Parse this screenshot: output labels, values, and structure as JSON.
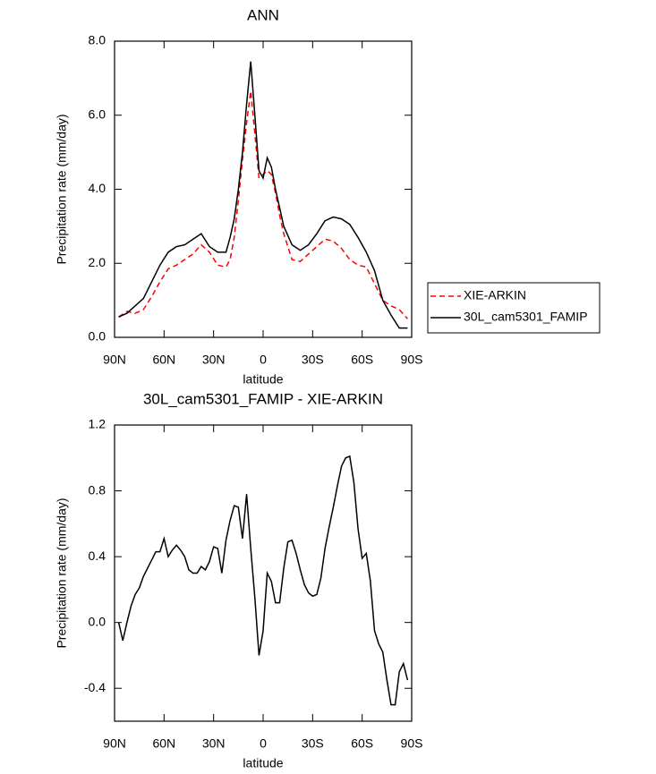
{
  "chart_data": [
    {
      "type": "line",
      "title": "ANN",
      "xlabel": "latitude",
      "ylabel": "Precipitation rate (mm/day)",
      "x": [
        87.5,
        82.5,
        77.5,
        72.5,
        67.5,
        62.5,
        57.5,
        52.5,
        47.5,
        42.5,
        37.5,
        32.5,
        27.5,
        22.5,
        20,
        17.5,
        15,
        12.5,
        10,
        7.5,
        5,
        2.5,
        0,
        -2.5,
        -5,
        -7.5,
        -10,
        -12.5,
        -17.5,
        -22.5,
        -27.5,
        -32.5,
        -37.5,
        -42.5,
        -47.5,
        -52.5,
        -57.5,
        -62.5,
        -67.5,
        -72.5,
        -77.5,
        -82.5,
        -87.5
      ],
      "series": [
        {
          "name": "XIE-ARKIN",
          "color": "#ff0000",
          "line_style": "dashed",
          "values": [
            0.55,
            0.7,
            0.65,
            0.75,
            1.1,
            1.5,
            1.85,
            1.95,
            2.1,
            2.25,
            2.5,
            2.3,
            1.95,
            1.9,
            2.1,
            2.7,
            3.7,
            4.8,
            5.8,
            6.65,
            5.5,
            4.3,
            4.4,
            4.5,
            4.4,
            3.9,
            3.3,
            2.8,
            2.1,
            2.05,
            2.25,
            2.45,
            2.65,
            2.6,
            2.4,
            2.1,
            1.95,
            1.9,
            1.45,
            1.0,
            0.85,
            0.75,
            0.5
          ]
        },
        {
          "name": "30L_cam5301_FAMIP",
          "color": "#000000",
          "line_style": "solid",
          "values": [
            0.55,
            0.65,
            0.85,
            1.05,
            1.5,
            1.95,
            2.3,
            2.45,
            2.5,
            2.65,
            2.8,
            2.45,
            2.3,
            2.3,
            2.7,
            3.2,
            4.0,
            5.0,
            6.3,
            7.45,
            6.0,
            4.5,
            4.3,
            4.85,
            4.6,
            4.0,
            3.5,
            3.0,
            2.5,
            2.35,
            2.5,
            2.8,
            3.15,
            3.25,
            3.2,
            3.05,
            2.7,
            2.3,
            1.8,
            1.0,
            0.6,
            0.25,
            0.25
          ]
        }
      ],
      "xlim": [
        90,
        -90
      ],
      "xticks": [
        {
          "value": 90,
          "label": "90N"
        },
        {
          "value": 60,
          "label": "60N"
        },
        {
          "value": 30,
          "label": "30N"
        },
        0,
        {
          "value": -30,
          "label": "30S"
        },
        {
          "value": -60,
          "label": "60S"
        },
        {
          "value": -90,
          "label": "90S"
        }
      ],
      "ylim": [
        0,
        8
      ],
      "yticks": [
        {
          "value": 0,
          "label": "0.0"
        },
        {
          "value": 2,
          "label": "2.0"
        },
        {
          "value": 4,
          "label": "4.0"
        },
        {
          "value": 6,
          "label": "6.0"
        },
        {
          "value": 8,
          "label": "8.0"
        }
      ],
      "legend": "right"
    },
    {
      "type": "line",
      "title": "30L_cam5301_FAMIP - XIE-ARKIN",
      "xlabel": "latitude",
      "ylabel": "Precipitation rate (mm/day)",
      "x": [
        87.5,
        85,
        82.5,
        80,
        77.5,
        75,
        72.5,
        70,
        67.5,
        65,
        62.5,
        60,
        57.5,
        55,
        52.5,
        50,
        47.5,
        45,
        42.5,
        40,
        37.5,
        35,
        32.5,
        30,
        27.5,
        25,
        22.5,
        20,
        17.5,
        15,
        12.5,
        10,
        7.5,
        5,
        2.5,
        0,
        -2.5,
        -5,
        -7.5,
        -10,
        -12.5,
        -15,
        -17.5,
        -20,
        -22.5,
        -25,
        -27.5,
        -30,
        -32.5,
        -35,
        -37.5,
        -40,
        -42.5,
        -45,
        -47.5,
        -50,
        -52.5,
        -55,
        -57.5,
        -60,
        -62.5,
        -65,
        -67.5,
        -70,
        -72.5,
        -75,
        -77.5,
        -80,
        -82.5,
        -85,
        -87.5
      ],
      "color": "#000000",
      "values": [
        0.0,
        -0.11,
        0.0,
        0.1,
        0.17,
        0.21,
        0.28,
        0.33,
        0.38,
        0.43,
        0.43,
        0.51,
        0.4,
        0.44,
        0.47,
        0.44,
        0.4,
        0.32,
        0.3,
        0.3,
        0.34,
        0.32,
        0.37,
        0.46,
        0.45,
        0.3,
        0.5,
        0.62,
        0.71,
        0.7,
        0.51,
        0.78,
        0.45,
        0.15,
        -0.2,
        -0.05,
        0.3,
        0.25,
        0.12,
        0.12,
        0.33,
        0.49,
        0.5,
        0.42,
        0.32,
        0.23,
        0.18,
        0.16,
        0.17,
        0.27,
        0.45,
        0.58,
        0.7,
        0.83,
        0.95,
        1.0,
        1.01,
        0.85,
        0.57,
        0.39,
        0.42,
        0.25,
        -0.05,
        -0.13,
        -0.18,
        -0.35,
        -0.5,
        -0.5,
        -0.3,
        -0.25,
        -0.35
      ],
      "xlim": [
        90,
        -90
      ],
      "xticks": [
        {
          "value": 90,
          "label": "90N"
        },
        {
          "value": 60,
          "label": "60N"
        },
        {
          "value": 30,
          "label": "30N"
        },
        0,
        {
          "value": -30,
          "label": "30S"
        },
        {
          "value": -60,
          "label": "60S"
        },
        {
          "value": -90,
          "label": "90S"
        }
      ],
      "ylim": [
        -0.6,
        1.2
      ],
      "yticks": [
        -0.4,
        {
          "value": 0,
          "label": "0.0"
        },
        0.4,
        0.8,
        1.2
      ]
    }
  ]
}
